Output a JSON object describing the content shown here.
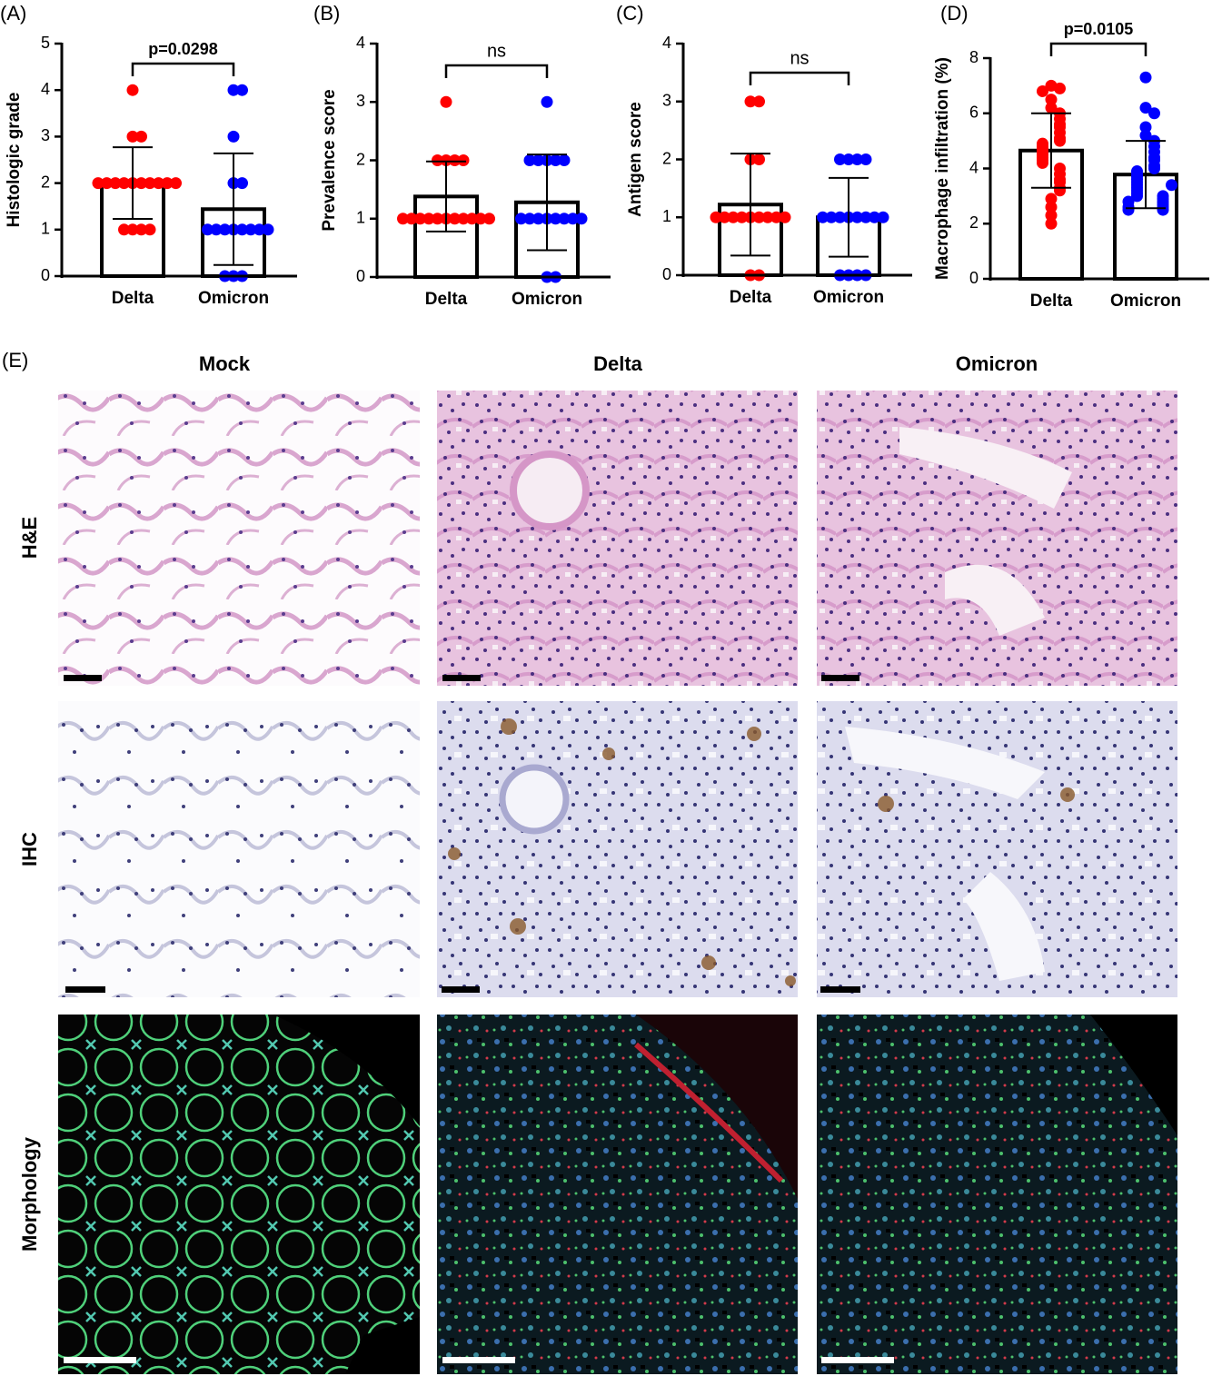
{
  "chart_data": [
    {
      "type": "bar",
      "label": "(A)",
      "ylabel": "Histologic grade",
      "categories": [
        "Delta",
        "Omicron"
      ],
      "values": [
        2.0,
        1.44
      ],
      "errors": [
        0.77,
        1.2
      ],
      "colors": [
        "#ff0000",
        "#0000ff"
      ],
      "points": [
        [
          4,
          3,
          3,
          2,
          2,
          2,
          2,
          2,
          2,
          2,
          2,
          2,
          2,
          1,
          1,
          1,
          1
        ],
        [
          4,
          4,
          3,
          2,
          2,
          1,
          1,
          1,
          1,
          1,
          1,
          1,
          1,
          0,
          0,
          0
        ]
      ],
      "annotation": "p=0.0298",
      "ylim": [
        0,
        5
      ],
      "yticks": [
        0,
        1,
        2,
        3,
        4,
        5
      ]
    },
    {
      "type": "bar",
      "label": "(B)",
      "ylabel": "Prevalence score",
      "categories": [
        "Delta",
        "Omicron"
      ],
      "values": [
        1.38,
        1.28
      ],
      "errors": [
        0.6,
        0.82
      ],
      "colors": [
        "#ff0000",
        "#0000ff"
      ],
      "points": [
        [
          3,
          2,
          2,
          2,
          2,
          1,
          1,
          1,
          1,
          1,
          1,
          1,
          1,
          1,
          1,
          1
        ],
        [
          3,
          2,
          2,
          2,
          2,
          2,
          1,
          1,
          1,
          1,
          1,
          1,
          1,
          1,
          0,
          0
        ]
      ],
      "annotation": "ns",
      "ylim": [
        0,
        4
      ],
      "yticks": [
        0,
        1,
        2,
        3,
        4
      ]
    },
    {
      "type": "bar",
      "label": "(C)",
      "ylabel": "Antigen score",
      "categories": [
        "Delta",
        "Omicron"
      ],
      "values": [
        1.22,
        1.0
      ],
      "errors": [
        0.88,
        0.68
      ],
      "colors": [
        "#ff0000",
        "#0000ff"
      ],
      "points": [
        [
          3,
          3,
          2,
          2,
          1,
          1,
          1,
          1,
          1,
          1,
          1,
          1,
          1,
          0,
          0
        ],
        [
          2,
          2,
          2,
          2,
          1,
          1,
          1,
          1,
          1,
          1,
          1,
          1,
          0,
          0,
          0,
          0
        ]
      ],
      "annotation": "ns",
      "ylim": [
        0,
        4
      ],
      "yticks": [
        0,
        1,
        2,
        3,
        4
      ]
    },
    {
      "type": "bar",
      "label": "(D)",
      "ylabel": "Macrophage infiltration (%)",
      "categories": [
        "Delta",
        "Omicron"
      ],
      "values": [
        4.65,
        3.78
      ],
      "errors": [
        1.35,
        1.22
      ],
      "colors": [
        "#ff0000",
        "#0000ff"
      ],
      "points": [
        [
          7.0,
          6.9,
          6.8,
          6.5,
          6.2,
          6.0,
          5.8,
          5.6,
          5.5,
          5.3,
          5.1,
          5.0,
          4.9,
          4.8,
          4.7,
          4.6,
          4.5,
          4.4,
          4.3,
          4.2,
          4.0,
          3.8,
          3.6,
          3.5,
          3.3,
          3.2,
          2.9,
          2.6,
          2.3,
          2.0
        ],
        [
          7.3,
          6.2,
          6.0,
          5.5,
          5.2,
          5.0,
          4.8,
          4.6,
          4.4,
          4.3,
          4.1,
          4.0,
          3.9,
          3.8,
          3.7,
          3.6,
          3.5,
          3.4,
          3.3,
          3.2,
          3.1,
          3.0,
          3.0,
          2.9,
          2.8,
          2.8,
          2.7,
          2.6,
          2.6,
          2.5,
          2.5,
          3.4
        ]
      ],
      "annotation": "p=0.0105",
      "ylim": [
        0,
        8
      ],
      "yticks": [
        0,
        2,
        4,
        6,
        8
      ]
    }
  ],
  "figure_e": {
    "label": "(E)",
    "columns": [
      "Mock",
      "Delta",
      "Omicron"
    ],
    "rows": [
      "H&E",
      "IHC",
      "Morphology"
    ]
  }
}
